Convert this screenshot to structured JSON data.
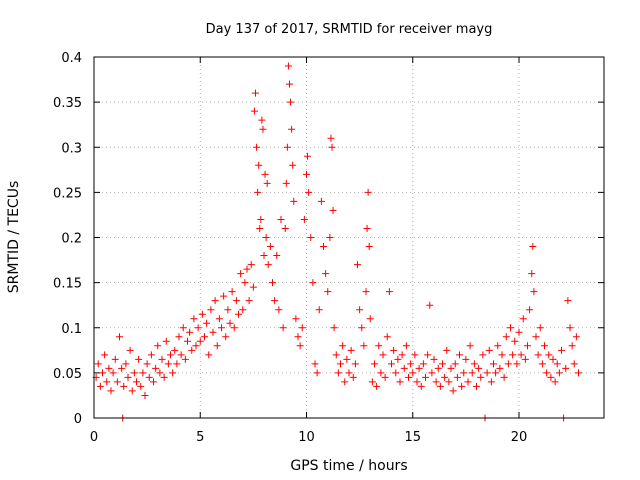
{
  "chart_data": {
    "type": "scatter",
    "title": "Day 137 of 2017, SRMTID for receiver mayg",
    "xlabel": "GPS time / hours",
    "ylabel": "SRMTID / TECUs",
    "xlim": [
      0,
      24
    ],
    "ylim": [
      0,
      0.4
    ],
    "x_ticks": [
      0,
      5,
      10,
      15,
      20
    ],
    "x_tick_labels": [
      "0",
      "5",
      "10",
      "15",
      "20"
    ],
    "y_ticks": [
      0,
      0.05,
      0.1,
      0.15,
      0.2,
      0.25,
      0.3,
      0.35,
      0.4
    ],
    "y_tick_labels": [
      "0",
      "0.05",
      "0.1",
      "0.15",
      "0.2",
      "0.25",
      "0.3",
      "0.35",
      "0.4"
    ],
    "grid": true,
    "marker": "plus",
    "color": "#ff0000",
    "series": [
      {
        "name": "SRMTID",
        "points": [
          [
            0.1,
            0.045
          ],
          [
            0.2,
            0.06
          ],
          [
            0.3,
            0.035
          ],
          [
            0.4,
            0.05
          ],
          [
            0.5,
            0.07
          ],
          [
            0.6,
            0.04
          ],
          [
            0.7,
            0.055
          ],
          [
            0.8,
            0.03
          ],
          [
            0.9,
            0.05
          ],
          [
            1.0,
            0.065
          ],
          [
            1.1,
            0.04
          ],
          [
            1.2,
            0.09
          ],
          [
            1.3,
            0.055
          ],
          [
            1.35,
            0.0
          ],
          [
            1.4,
            0.035
          ],
          [
            1.5,
            0.06
          ],
          [
            1.6,
            0.045
          ],
          [
            1.7,
            0.075
          ],
          [
            1.8,
            0.03
          ],
          [
            1.9,
            0.05
          ],
          [
            2.0,
            0.04
          ],
          [
            2.1,
            0.065
          ],
          [
            2.2,
            0.035
          ],
          [
            2.3,
            0.05
          ],
          [
            2.4,
            0.025
          ],
          [
            2.5,
            0.06
          ],
          [
            2.6,
            0.045
          ],
          [
            2.7,
            0.07
          ],
          [
            2.8,
            0.04
          ],
          [
            2.9,
            0.055
          ],
          [
            3.0,
            0.08
          ],
          [
            3.1,
            0.05
          ],
          [
            3.2,
            0.065
          ],
          [
            3.3,
            0.045
          ],
          [
            3.4,
            0.085
          ],
          [
            3.5,
            0.06
          ],
          [
            3.6,
            0.07
          ],
          [
            3.7,
            0.05
          ],
          [
            3.8,
            0.075
          ],
          [
            3.9,
            0.06
          ],
          [
            4.0,
            0.09
          ],
          [
            4.1,
            0.07
          ],
          [
            4.2,
            0.1
          ],
          [
            4.3,
            0.065
          ],
          [
            4.4,
            0.085
          ],
          [
            4.5,
            0.095
          ],
          [
            4.6,
            0.075
          ],
          [
            4.7,
            0.11
          ],
          [
            4.8,
            0.08
          ],
          [
            4.9,
            0.1
          ],
          [
            5.0,
            0.085
          ],
          [
            5.1,
            0.115
          ],
          [
            5.2,
            0.09
          ],
          [
            5.3,
            0.105
          ],
          [
            5.4,
            0.07
          ],
          [
            5.5,
            0.12
          ],
          [
            5.6,
            0.095
          ],
          [
            5.7,
            0.13
          ],
          [
            5.8,
            0.08
          ],
          [
            5.9,
            0.11
          ],
          [
            6.0,
            0.1
          ],
          [
            6.1,
            0.135
          ],
          [
            6.2,
            0.09
          ],
          [
            6.3,
            0.12
          ],
          [
            6.4,
            0.105
          ],
          [
            6.5,
            0.14
          ],
          [
            6.6,
            0.1
          ],
          [
            6.7,
            0.13
          ],
          [
            6.8,
            0.115
          ],
          [
            6.9,
            0.16
          ],
          [
            7.0,
            0.12
          ],
          [
            7.1,
            0.15
          ],
          [
            7.2,
            0.165
          ],
          [
            7.3,
            0.13
          ],
          [
            7.4,
            0.17
          ],
          [
            7.5,
            0.145
          ],
          [
            7.55,
            0.34
          ],
          [
            7.6,
            0.36
          ],
          [
            7.65,
            0.3
          ],
          [
            7.7,
            0.25
          ],
          [
            7.75,
            0.28
          ],
          [
            7.8,
            0.21
          ],
          [
            7.85,
            0.22
          ],
          [
            7.9,
            0.33
          ],
          [
            7.95,
            0.32
          ],
          [
            8.0,
            0.18
          ],
          [
            8.05,
            0.27
          ],
          [
            8.1,
            0.2
          ],
          [
            8.15,
            0.26
          ],
          [
            8.2,
            0.17
          ],
          [
            8.3,
            0.19
          ],
          [
            8.4,
            0.15
          ],
          [
            8.5,
            0.13
          ],
          [
            8.6,
            0.18
          ],
          [
            8.7,
            0.12
          ],
          [
            8.8,
            0.22
          ],
          [
            8.9,
            0.1
          ],
          [
            9.0,
            0.21
          ],
          [
            9.05,
            0.26
          ],
          [
            9.1,
            0.3
          ],
          [
            9.15,
            0.39
          ],
          [
            9.2,
            0.37
          ],
          [
            9.25,
            0.35
          ],
          [
            9.3,
            0.32
          ],
          [
            9.35,
            0.28
          ],
          [
            9.4,
            0.24
          ],
          [
            9.5,
            0.11
          ],
          [
            9.6,
            0.09
          ],
          [
            9.7,
            0.08
          ],
          [
            9.8,
            0.1
          ],
          [
            9.9,
            0.22
          ],
          [
            10.0,
            0.27
          ],
          [
            10.05,
            0.29
          ],
          [
            10.1,
            0.25
          ],
          [
            10.2,
            0.2
          ],
          [
            10.3,
            0.15
          ],
          [
            10.4,
            0.06
          ],
          [
            10.5,
            0.05
          ],
          [
            10.6,
            0.12
          ],
          [
            10.7,
            0.24
          ],
          [
            10.8,
            0.19
          ],
          [
            10.9,
            0.16
          ],
          [
            11.0,
            0.14
          ],
          [
            11.1,
            0.2
          ],
          [
            11.15,
            0.31
          ],
          [
            11.2,
            0.3
          ],
          [
            11.25,
            0.23
          ],
          [
            11.3,
            0.1
          ],
          [
            11.4,
            0.07
          ],
          [
            11.5,
            0.05
          ],
          [
            11.6,
            0.06
          ],
          [
            11.7,
            0.08
          ],
          [
            11.8,
            0.04
          ],
          [
            11.9,
            0.065
          ],
          [
            12.0,
            0.05
          ],
          [
            12.1,
            0.075
          ],
          [
            12.2,
            0.045
          ],
          [
            12.3,
            0.06
          ],
          [
            12.4,
            0.17
          ],
          [
            12.5,
            0.12
          ],
          [
            12.6,
            0.1
          ],
          [
            12.7,
            0.08
          ],
          [
            12.8,
            0.14
          ],
          [
            12.85,
            0.21
          ],
          [
            12.9,
            0.25
          ],
          [
            12.95,
            0.19
          ],
          [
            13.0,
            0.11
          ],
          [
            13.1,
            0.04
          ],
          [
            13.2,
            0.06
          ],
          [
            13.3,
            0.035
          ],
          [
            13.4,
            0.08
          ],
          [
            13.5,
            0.05
          ],
          [
            13.6,
            0.07
          ],
          [
            13.7,
            0.045
          ],
          [
            13.8,
            0.09
          ],
          [
            13.9,
            0.14
          ],
          [
            14.0,
            0.06
          ],
          [
            14.1,
            0.075
          ],
          [
            14.2,
            0.05
          ],
          [
            14.3,
            0.065
          ],
          [
            14.4,
            0.04
          ],
          [
            14.5,
            0.07
          ],
          [
            14.6,
            0.055
          ],
          [
            14.7,
            0.08
          ],
          [
            14.8,
            0.045
          ],
          [
            14.9,
            0.06
          ],
          [
            15.0,
            0.05
          ],
          [
            15.1,
            0.07
          ],
          [
            15.2,
            0.04
          ],
          [
            15.3,
            0.055
          ],
          [
            15.4,
            0.035
          ],
          [
            15.5,
            0.06
          ],
          [
            15.6,
            0.045
          ],
          [
            15.7,
            0.07
          ],
          [
            15.8,
            0.125
          ],
          [
            15.9,
            0.05
          ],
          [
            16.0,
            0.065
          ],
          [
            16.1,
            0.04
          ],
          [
            16.2,
            0.055
          ],
          [
            16.3,
            0.035
          ],
          [
            16.4,
            0.06
          ],
          [
            16.5,
            0.045
          ],
          [
            16.6,
            0.075
          ],
          [
            16.7,
            0.04
          ],
          [
            16.8,
            0.055
          ],
          [
            16.9,
            0.03
          ],
          [
            17.0,
            0.06
          ],
          [
            17.1,
            0.045
          ],
          [
            17.2,
            0.07
          ],
          [
            17.3,
            0.035
          ],
          [
            17.4,
            0.05
          ],
          [
            17.5,
            0.065
          ],
          [
            17.6,
            0.04
          ],
          [
            17.7,
            0.08
          ],
          [
            17.8,
            0.05
          ],
          [
            17.9,
            0.06
          ],
          [
            18.0,
            0.035
          ],
          [
            18.1,
            0.055
          ],
          [
            18.2,
            0.045
          ],
          [
            18.3,
            0.07
          ],
          [
            18.4,
            0.0
          ],
          [
            18.5,
            0.05
          ],
          [
            18.6,
            0.075
          ],
          [
            18.7,
            0.04
          ],
          [
            18.8,
            0.06
          ],
          [
            18.9,
            0.05
          ],
          [
            19.0,
            0.08
          ],
          [
            19.1,
            0.055
          ],
          [
            19.2,
            0.07
          ],
          [
            19.3,
            0.045
          ],
          [
            19.4,
            0.09
          ],
          [
            19.5,
            0.06
          ],
          [
            19.6,
            0.1
          ],
          [
            19.7,
            0.07
          ],
          [
            19.8,
            0.085
          ],
          [
            19.9,
            0.06
          ],
          [
            20.0,
            0.095
          ],
          [
            20.1,
            0.07
          ],
          [
            20.2,
            0.11
          ],
          [
            20.3,
            0.065
          ],
          [
            20.4,
            0.08
          ],
          [
            20.5,
            0.12
          ],
          [
            20.6,
            0.16
          ],
          [
            20.65,
            0.19
          ],
          [
            20.7,
            0.14
          ],
          [
            20.8,
            0.09
          ],
          [
            20.9,
            0.07
          ],
          [
            21.0,
            0.1
          ],
          [
            21.1,
            0.06
          ],
          [
            21.2,
            0.08
          ],
          [
            21.3,
            0.05
          ],
          [
            21.4,
            0.07
          ],
          [
            21.5,
            0.045
          ],
          [
            21.6,
            0.065
          ],
          [
            21.7,
            0.04
          ],
          [
            21.8,
            0.06
          ],
          [
            21.9,
            0.05
          ],
          [
            22.0,
            0.075
          ],
          [
            22.1,
            0.0
          ],
          [
            22.2,
            0.055
          ],
          [
            22.3,
            0.13
          ],
          [
            22.4,
            0.1
          ],
          [
            22.5,
            0.08
          ],
          [
            22.6,
            0.06
          ],
          [
            22.7,
            0.09
          ],
          [
            22.8,
            0.05
          ]
        ]
      }
    ]
  }
}
